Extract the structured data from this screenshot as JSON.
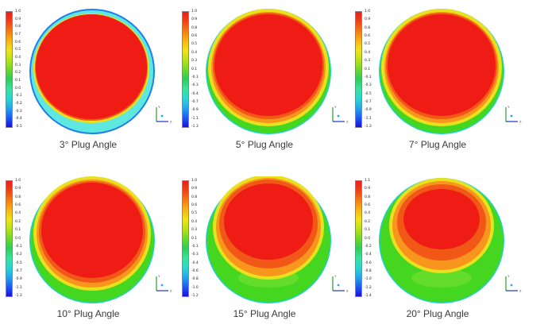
{
  "palette": {
    "colorbar": [
      "#1a10d6",
      "#1f5cf2",
      "#25a6ec",
      "#2ad7d0",
      "#39e39a",
      "#2ecc5a",
      "#6fd82a",
      "#b8e21a",
      "#f0e21a",
      "#f7b414",
      "#f57a12",
      "#ee4317",
      "#e81e1a"
    ],
    "red": "#ee1c14",
    "orange1": "#f15717",
    "orange2": "#f8951c",
    "yellow": "#e9e01f",
    "green": "#45d61f",
    "greenLight": "#63dd2a",
    "cyan": "#5fe8e0",
    "blueRim": "#1e7ef0"
  },
  "panels": [
    {
      "caption": "3° Plug Angle",
      "ticks": [
        "1.0",
        "0.9",
        "0.8",
        "0.7",
        "0.6",
        "0.5",
        "0.4",
        "0.3",
        "0.2",
        "0.1",
        "0.0",
        "-0.1",
        "-0.2",
        "-0.3",
        "-0.4",
        "-0.5"
      ],
      "style": "cyan"
    },
    {
      "caption": "5° Plug Angle",
      "ticks": [
        "1.0",
        "0.9",
        "0.8",
        "0.6",
        "0.5",
        "0.4",
        "0.3",
        "0.1",
        "-0.1",
        "-0.3",
        "-0.4",
        "-0.7",
        "-0.9",
        "-1.1",
        "-1.3"
      ],
      "style": "green1"
    },
    {
      "caption": "7° Plug Angle",
      "ticks": [
        "1.0",
        "0.9",
        "0.8",
        "0.6",
        "0.5",
        "0.4",
        "0.3",
        "0.1",
        "-0.1",
        "-0.3",
        "-0.5",
        "-0.7",
        "-0.9",
        "-1.1",
        "-1.3"
      ],
      "style": "green1"
    },
    {
      "caption": "10° Plug Angle",
      "ticks": [
        "1.0",
        "0.9",
        "0.8",
        "0.6",
        "0.4",
        "0.2",
        "0.1",
        "0.0",
        "-0.1",
        "-0.2",
        "-0.5",
        "-0.7",
        "-0.9",
        "-1.1",
        "-1.3"
      ],
      "style": "green2"
    },
    {
      "caption": "15° Plug Angle",
      "ticks": [
        "1.0",
        "0.9",
        "0.8",
        "0.6",
        "0.5",
        "0.4",
        "0.3",
        "0.1",
        "-0.1",
        "-0.3",
        "-0.4",
        "-0.6",
        "-0.8",
        "-1.0",
        "-1.2"
      ],
      "style": "green3"
    },
    {
      "caption": "20° Plug Angle",
      "ticks": [
        "1.1",
        "0.9",
        "0.8",
        "0.6",
        "0.4",
        "0.2",
        "0.1",
        "0.0",
        "-0.2",
        "-0.4",
        "-0.6",
        "-0.8",
        "-1.0",
        "-1.2",
        "-1.4"
      ],
      "style": "green4"
    }
  ],
  "axes_labels": {
    "y": "Y",
    "z": "Z"
  }
}
